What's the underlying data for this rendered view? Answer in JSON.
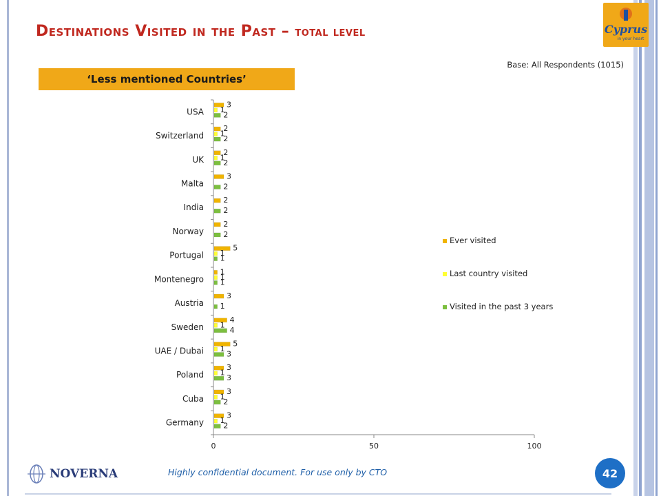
{
  "header": {
    "title_main": "Destinations Visited in the Past – ",
    "title_suffix": "total level",
    "base_note": "Base: All Respondents (1015)",
    "subtitle": "‘Less mentioned Countries’"
  },
  "logo": {
    "name": "cyprus-logo",
    "text": "Cyprus in your heart"
  },
  "footer": {
    "note": "Highly confidential document. For use only by CTO",
    "brand": "NOVERNA",
    "page_number": "42"
  },
  "colors": {
    "accent": "#f0a818",
    "title": "#c0281f",
    "ever": "#f0b400",
    "last": "#ffff33",
    "past3": "#7cbf3f",
    "page_badge": "#1e6fc6"
  },
  "chart_data": {
    "type": "bar",
    "orientation": "horizontal",
    "categories": [
      "USA",
      "Switzerland",
      "UK",
      "Malta",
      "India",
      "Norway",
      "Portugal",
      "Montenegro",
      "Austria",
      "Sweden",
      "UAE / Dubai",
      "Poland",
      "Cuba",
      "Germany"
    ],
    "series": [
      {
        "name": "Ever visited",
        "color": "#f0b400",
        "values": [
          3,
          2,
          2,
          3,
          2,
          2,
          5,
          1,
          3,
          4,
          5,
          3,
          3,
          3
        ]
      },
      {
        "name": "Last country visited",
        "color": "#ffff33",
        "values": [
          1,
          1,
          1,
          null,
          null,
          null,
          1,
          1,
          null,
          1,
          1,
          1,
          1,
          1
        ]
      },
      {
        "name": "Visited in the past 3 years",
        "color": "#7cbf3f",
        "values": [
          2,
          2,
          2,
          2,
          2,
          2,
          1,
          1,
          1,
          4,
          3,
          3,
          2,
          2
        ]
      }
    ],
    "xlim": [
      0,
      100
    ],
    "xticks": [
      0,
      50,
      100
    ],
    "legend_position": "right",
    "data_labels": true,
    "grid": false
  }
}
